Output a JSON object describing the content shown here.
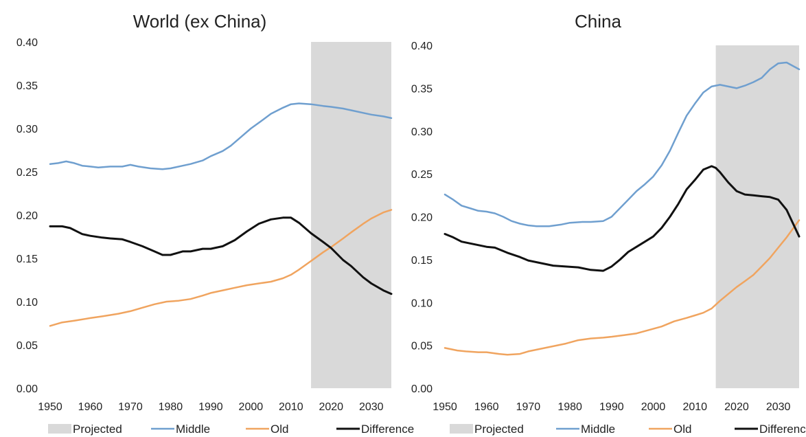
{
  "chart_data": [
    {
      "type": "line",
      "title": "World (ex China)",
      "xlabel": "",
      "ylabel": "",
      "xlim": [
        1950,
        2035
      ],
      "ylim": [
        0,
        0.4
      ],
      "yticks": [
        "0.00",
        "0.05",
        "0.10",
        "0.15",
        "0.20",
        "0.25",
        "0.30",
        "0.35",
        "0.40"
      ],
      "xticks": [
        "1950",
        "1960",
        "1970",
        "1980",
        "1990",
        "2000",
        "2010",
        "2020",
        "2030"
      ],
      "projected_range": [
        2015,
        2035
      ],
      "grid": false,
      "legend_position": "bottom",
      "series": [
        {
          "name": "Middle",
          "color": "#6f9fcf",
          "x": [
            1950,
            1952,
            1954,
            1956,
            1958,
            1960,
            1962,
            1965,
            1968,
            1970,
            1972,
            1975,
            1978,
            1980,
            1983,
            1985,
            1988,
            1990,
            1993,
            1995,
            1998,
            2000,
            2003,
            2005,
            2008,
            2010,
            2012,
            2015,
            2018,
            2020,
            2023,
            2025,
            2028,
            2030,
            2033,
            2035
          ],
          "y": [
            0.259,
            0.26,
            0.262,
            0.26,
            0.257,
            0.256,
            0.255,
            0.256,
            0.256,
            0.258,
            0.256,
            0.254,
            0.253,
            0.254,
            0.257,
            0.259,
            0.263,
            0.268,
            0.274,
            0.28,
            0.292,
            0.3,
            0.31,
            0.317,
            0.324,
            0.328,
            0.329,
            0.328,
            0.326,
            0.325,
            0.323,
            0.321,
            0.318,
            0.316,
            0.314,
            0.312
          ]
        },
        {
          "name": "Old",
          "color": "#f0a45f",
          "x": [
            1950,
            1953,
            1956,
            1960,
            1963,
            1967,
            1970,
            1973,
            1976,
            1979,
            1982,
            1985,
            1988,
            1990,
            1993,
            1996,
            1999,
            2002,
            2005,
            2008,
            2010,
            2012,
            2015,
            2018,
            2020,
            2023,
            2025,
            2028,
            2030,
            2033,
            2035
          ],
          "y": [
            0.072,
            0.076,
            0.078,
            0.081,
            0.083,
            0.086,
            0.089,
            0.093,
            0.097,
            0.1,
            0.101,
            0.103,
            0.107,
            0.11,
            0.113,
            0.116,
            0.119,
            0.121,
            0.123,
            0.127,
            0.131,
            0.137,
            0.147,
            0.157,
            0.163,
            0.173,
            0.18,
            0.19,
            0.196,
            0.203,
            0.206
          ]
        },
        {
          "name": "Difference",
          "color": "#111111",
          "x": [
            1950,
            1953,
            1955,
            1958,
            1960,
            1963,
            1965,
            1968,
            1970,
            1973,
            1976,
            1978,
            1980,
            1983,
            1985,
            1988,
            1990,
            1993,
            1996,
            1999,
            2002,
            2005,
            2008,
            2010,
            2012,
            2015,
            2018,
            2020,
            2023,
            2025,
            2028,
            2030,
            2033,
            2035
          ],
          "y": [
            0.187,
            0.187,
            0.185,
            0.178,
            0.176,
            0.174,
            0.173,
            0.172,
            0.169,
            0.164,
            0.158,
            0.154,
            0.154,
            0.158,
            0.158,
            0.161,
            0.161,
            0.164,
            0.171,
            0.181,
            0.19,
            0.195,
            0.197,
            0.197,
            0.191,
            0.179,
            0.169,
            0.162,
            0.148,
            0.141,
            0.128,
            0.121,
            0.113,
            0.109
          ]
        }
      ],
      "legend": [
        "Projected",
        "Middle",
        "Old",
        "Difference"
      ]
    },
    {
      "type": "line",
      "title": "China",
      "xlabel": "",
      "ylabel": "",
      "xlim": [
        1950,
        2035
      ],
      "ylim": [
        0,
        0.4
      ],
      "yticks": [
        "0.00",
        "0.05",
        "0.10",
        "0.15",
        "0.20",
        "0.25",
        "0.30",
        "0.35",
        "0.40"
      ],
      "xticks": [
        "1950",
        "1960",
        "1970",
        "1980",
        "1990",
        "2000",
        "2010",
        "2020",
        "2030"
      ],
      "projected_range": [
        2015,
        2035
      ],
      "grid": false,
      "legend_position": "bottom",
      "series": [
        {
          "name": "Middle",
          "color": "#6f9fcf",
          "x": [
            1950,
            1952,
            1954,
            1956,
            1958,
            1960,
            1962,
            1964,
            1966,
            1968,
            1970,
            1972,
            1975,
            1978,
            1980,
            1983,
            1985,
            1988,
            1990,
            1992,
            1994,
            1996,
            1998,
            2000,
            2002,
            2004,
            2006,
            2008,
            2010,
            2012,
            2014,
            2016,
            2018,
            2020,
            2022,
            2024,
            2026,
            2028,
            2030,
            2032,
            2035
          ],
          "y": [
            0.226,
            0.22,
            0.213,
            0.21,
            0.207,
            0.206,
            0.204,
            0.2,
            0.195,
            0.192,
            0.19,
            0.189,
            0.189,
            0.191,
            0.193,
            0.194,
            0.194,
            0.195,
            0.2,
            0.21,
            0.22,
            0.23,
            0.238,
            0.247,
            0.26,
            0.277,
            0.298,
            0.318,
            0.332,
            0.345,
            0.352,
            0.354,
            0.352,
            0.35,
            0.353,
            0.357,
            0.362,
            0.372,
            0.379,
            0.38,
            0.372
          ]
        },
        {
          "name": "Old",
          "color": "#f0a45f",
          "x": [
            1950,
            1953,
            1955,
            1958,
            1960,
            1963,
            1965,
            1968,
            1970,
            1973,
            1976,
            1979,
            1982,
            1985,
            1988,
            1990,
            1993,
            1996,
            1999,
            2002,
            2005,
            2008,
            2010,
            2012,
            2014,
            2016,
            2018,
            2020,
            2022,
            2024,
            2026,
            2028,
            2030,
            2032,
            2035
          ],
          "y": [
            0.047,
            0.044,
            0.043,
            0.042,
            0.042,
            0.04,
            0.039,
            0.04,
            0.043,
            0.046,
            0.049,
            0.052,
            0.056,
            0.058,
            0.059,
            0.06,
            0.062,
            0.064,
            0.068,
            0.072,
            0.078,
            0.082,
            0.085,
            0.088,
            0.093,
            0.102,
            0.11,
            0.118,
            0.125,
            0.132,
            0.142,
            0.152,
            0.164,
            0.176,
            0.196
          ]
        },
        {
          "name": "Difference",
          "color": "#111111",
          "x": [
            1950,
            1952,
            1954,
            1956,
            1958,
            1960,
            1962,
            1965,
            1968,
            1970,
            1973,
            1976,
            1979,
            1982,
            1985,
            1988,
            1990,
            1992,
            1994,
            1996,
            1998,
            2000,
            2002,
            2004,
            2006,
            2008,
            2010,
            2012,
            2014,
            2015,
            2016,
            2018,
            2020,
            2022,
            2024,
            2026,
            2028,
            2030,
            2032,
            2035
          ],
          "y": [
            0.18,
            0.176,
            0.171,
            0.169,
            0.167,
            0.165,
            0.164,
            0.158,
            0.153,
            0.149,
            0.146,
            0.143,
            0.142,
            0.141,
            0.138,
            0.137,
            0.142,
            0.15,
            0.159,
            0.165,
            0.171,
            0.177,
            0.187,
            0.2,
            0.215,
            0.232,
            0.243,
            0.255,
            0.259,
            0.257,
            0.252,
            0.24,
            0.23,
            0.226,
            0.225,
            0.224,
            0.223,
            0.22,
            0.208,
            0.177
          ]
        }
      ],
      "legend": [
        "Projected",
        "Middle",
        "Old",
        "Difference"
      ]
    }
  ]
}
